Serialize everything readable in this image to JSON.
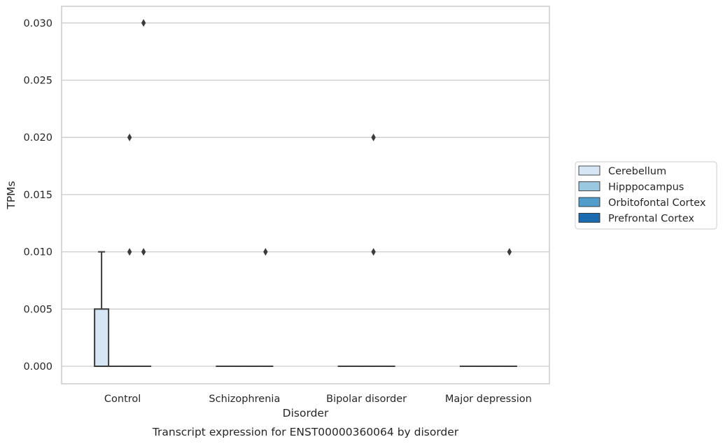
{
  "chart_data": {
    "type": "box",
    "xlabel": "Disorder",
    "ylabel": "TPMs",
    "caption": "Transcript expression for ENST00000360064 by disorder",
    "categories": [
      "Control",
      "Schizophrenia",
      "Bipolar disorder",
      "Major depression"
    ],
    "ylim": [
      -0.0015,
      0.0315
    ],
    "yticks": [
      "0.000",
      "0.005",
      "0.010",
      "0.015",
      "0.020",
      "0.025",
      "0.030"
    ],
    "grid": true,
    "legend_position": "right",
    "series": [
      {
        "name": "Cerebellum",
        "color": "#d6e6f4",
        "boxes": [
          {
            "q1": 0.0,
            "median": 0.0,
            "q3": 0.005,
            "whisker_low": 0.0,
            "whisker_high": 0.01,
            "outliers": []
          },
          {
            "q1": 0.0,
            "median": 0.0,
            "q3": 0.0,
            "whisker_low": 0.0,
            "whisker_high": 0.0,
            "outliers": []
          },
          {
            "q1": 0.0,
            "median": 0.0,
            "q3": 0.0,
            "whisker_low": 0.0,
            "whisker_high": 0.0,
            "outliers": []
          },
          {
            "q1": 0.0,
            "median": 0.0,
            "q3": 0.0,
            "whisker_low": 0.0,
            "whisker_high": 0.0,
            "outliers": []
          }
        ]
      },
      {
        "name": "Hipppocampus",
        "color": "#9ac8e0",
        "boxes": [
          {
            "q1": 0.0,
            "median": 0.0,
            "q3": 0.0,
            "whisker_low": 0.0,
            "whisker_high": 0.0,
            "outliers": []
          },
          {
            "q1": 0.0,
            "median": 0.0,
            "q3": 0.0,
            "whisker_low": 0.0,
            "whisker_high": 0.0,
            "outliers": []
          },
          {
            "q1": 0.0,
            "median": 0.0,
            "q3": 0.0,
            "whisker_low": 0.0,
            "whisker_high": 0.0,
            "outliers": []
          },
          {
            "q1": 0.0,
            "median": 0.0,
            "q3": 0.0,
            "whisker_low": 0.0,
            "whisker_high": 0.0,
            "outliers": []
          }
        ]
      },
      {
        "name": "Orbitofontal Cortex",
        "color": "#529dcc",
        "boxes": [
          {
            "q1": 0.0,
            "median": 0.0,
            "q3": 0.0,
            "whisker_low": 0.0,
            "whisker_high": 0.0,
            "outliers": [
              0.01,
              0.02
            ]
          },
          {
            "q1": 0.0,
            "median": 0.0,
            "q3": 0.0,
            "whisker_low": 0.0,
            "whisker_high": 0.0,
            "outliers": []
          },
          {
            "q1": 0.0,
            "median": 0.0,
            "q3": 0.0,
            "whisker_low": 0.0,
            "whisker_high": 0.0,
            "outliers": [
              0.01,
              0.02
            ]
          },
          {
            "q1": 0.0,
            "median": 0.0,
            "q3": 0.0,
            "whisker_low": 0.0,
            "whisker_high": 0.0,
            "outliers": []
          }
        ]
      },
      {
        "name": "Prefrontal Cortex",
        "color": "#1c6aaf",
        "boxes": [
          {
            "q1": 0.0,
            "median": 0.0,
            "q3": 0.0,
            "whisker_low": 0.0,
            "whisker_high": 0.0,
            "outliers": [
              0.01,
              0.03
            ]
          },
          {
            "q1": 0.0,
            "median": 0.0,
            "q3": 0.0,
            "whisker_low": 0.0,
            "whisker_high": 0.0,
            "outliers": [
              0.01
            ]
          },
          {
            "q1": 0.0,
            "median": 0.0,
            "q3": 0.0,
            "whisker_low": 0.0,
            "whisker_high": 0.0,
            "outliers": []
          },
          {
            "q1": 0.0,
            "median": 0.0,
            "q3": 0.0,
            "whisker_low": 0.0,
            "whisker_high": 0.0,
            "outliers": [
              0.01
            ]
          }
        ]
      }
    ]
  }
}
